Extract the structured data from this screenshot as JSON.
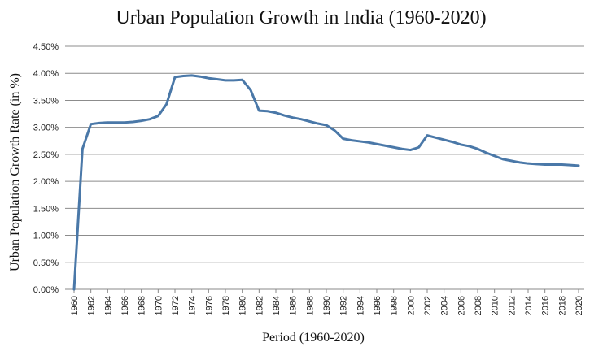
{
  "chart_data": {
    "type": "line",
    "title": "Urban Population Growth in India (1960-2020)",
    "xlabel": "Period (1960-2020)",
    "ylabel": "Urban Population Growth Rate (in %)",
    "ylim": [
      0,
      4.5
    ],
    "yticks": [
      "0.00%",
      "0.50%",
      "1.00%",
      "1.50%",
      "2.00%",
      "2.50%",
      "3.00%",
      "3.50%",
      "4.00%",
      "4.50%"
    ],
    "xticks": [
      "1960",
      "1962",
      "1964",
      "1966",
      "1968",
      "1970",
      "1972",
      "1974",
      "1976",
      "1978",
      "1980",
      "1982",
      "1984",
      "1986",
      "1988",
      "1990",
      "1992",
      "1994",
      "1996",
      "1998",
      "2000",
      "2002",
      "2004",
      "2006",
      "2008",
      "2010",
      "2012",
      "2014",
      "2016",
      "2018",
      "2020"
    ],
    "grid": true,
    "legend": "none",
    "line_color": "#4a78a8",
    "x": [
      1960,
      1961,
      1962,
      1963,
      1964,
      1965,
      1966,
      1967,
      1968,
      1969,
      1970,
      1971,
      1972,
      1973,
      1974,
      1975,
      1976,
      1977,
      1978,
      1979,
      1980,
      1981,
      1982,
      1983,
      1984,
      1985,
      1986,
      1987,
      1988,
      1989,
      1990,
      1991,
      1992,
      1993,
      1994,
      1995,
      1996,
      1997,
      1998,
      1999,
      2000,
      2001,
      2002,
      2003,
      2004,
      2005,
      2006,
      2007,
      2008,
      2009,
      2010,
      2011,
      2012,
      2013,
      2014,
      2015,
      2016,
      2017,
      2018,
      2019,
      2020
    ],
    "series": [
      {
        "values": [
          0.0,
          2.6,
          3.06,
          3.08,
          3.09,
          3.09,
          3.09,
          3.1,
          3.12,
          3.15,
          3.21,
          3.43,
          3.93,
          3.95,
          3.96,
          3.94,
          3.91,
          3.89,
          3.87,
          3.87,
          3.88,
          3.69,
          3.31,
          3.3,
          3.27,
          3.22,
          3.18,
          3.15,
          3.11,
          3.07,
          3.04,
          2.94,
          2.79,
          2.76,
          2.74,
          2.72,
          2.69,
          2.66,
          2.63,
          2.6,
          2.58,
          2.63,
          2.85,
          2.81,
          2.77,
          2.73,
          2.68,
          2.65,
          2.6,
          2.53,
          2.47,
          2.41,
          2.38,
          2.35,
          2.33,
          2.32,
          2.31,
          2.31,
          2.31,
          2.3,
          2.29
        ]
      }
    ]
  }
}
